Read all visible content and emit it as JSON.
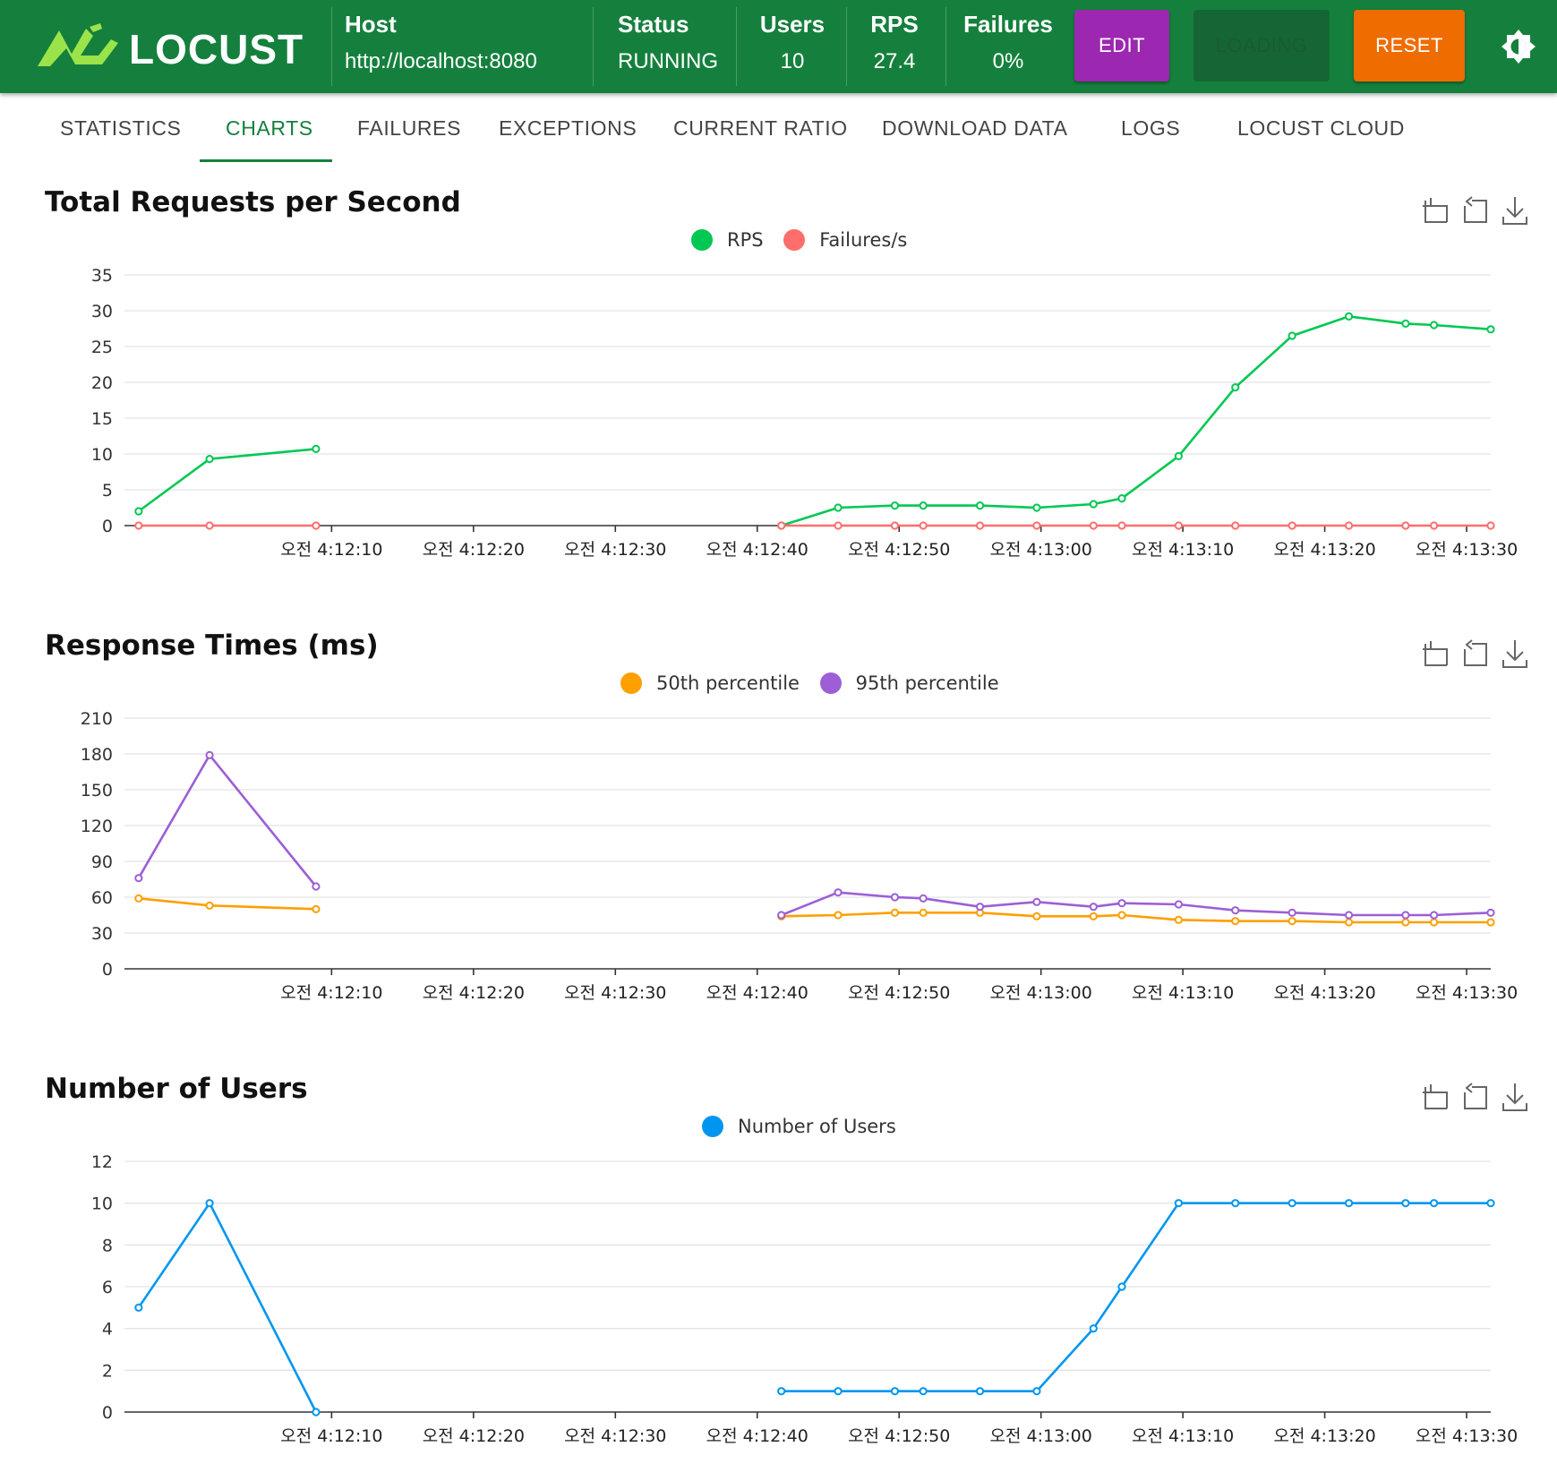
{
  "header": {
    "brand": "LOCUST",
    "host_label": "Host",
    "host_value": "http://localhost:8080",
    "status_label": "Status",
    "status_value": "RUNNING",
    "users_label": "Users",
    "users_value": "10",
    "rps_label": "RPS",
    "rps_value": "27.4",
    "failures_label": "Failures",
    "failures_value": "0%",
    "edit_label": "EDIT",
    "loading_label": "LOADING",
    "reset_label": "RESET"
  },
  "tabs": [
    {
      "label": "STATISTICS"
    },
    {
      "label": "CHARTS"
    },
    {
      "label": "FAILURES"
    },
    {
      "label": "EXCEPTIONS"
    },
    {
      "label": "CURRENT RATIO"
    },
    {
      "label": "DOWNLOAD DATA"
    },
    {
      "label": "LOGS"
    },
    {
      "label": "LOCUST CLOUD"
    }
  ],
  "colors": {
    "brand_green": "#15803d",
    "edit": "#9c27b0",
    "reset": "#ef6c00",
    "rps": "#00c853",
    "failures": "#ff6d6d",
    "p50": "#ff9f00",
    "p95": "#9c5fd6",
    "users": "#0096f0"
  },
  "chart_data": [
    {
      "type": "line",
      "title": "Total Requests per Second",
      "ylim": [
        0,
        35
      ],
      "yticks": [
        "0",
        "5",
        "10",
        "15",
        "20",
        "25",
        "30",
        "35"
      ],
      "xticks": [
        "오전 4:12:10",
        "오전 4:12:20",
        "오전 4:12:30",
        "오전 4:12:40",
        "오전 4:12:50",
        "오전 4:13:00",
        "오전 4:13:10",
        "오전 4:13:20",
        "오전 4:13:30"
      ],
      "series": [
        {
          "name": "RPS",
          "color": "#00c853",
          "segments": [
            [
              [
                1,
                2
              ],
              [
                6,
                9.3
              ],
              [
                13.5,
                10.7
              ]
            ],
            [
              [
                46.3,
                0
              ],
              [
                50.3,
                2.5
              ],
              [
                54.3,
                2.8
              ],
              [
                56.3,
                2.8
              ],
              [
                60.3,
                2.8
              ],
              [
                64.3,
                2.5
              ],
              [
                68.3,
                3.0
              ],
              [
                70.3,
                3.8
              ],
              [
                74.3,
                9.7
              ],
              [
                78.3,
                19.3
              ],
              [
                82.3,
                26.5
              ],
              [
                86.3,
                29.2
              ],
              [
                90.3,
                28.2
              ],
              [
                92.3,
                28.0
              ],
              [
                96.3,
                27.4
              ]
            ]
          ]
        },
        {
          "name": "Failures/s",
          "color": "#ff6d6d",
          "segments": [
            [
              [
                1,
                0
              ],
              [
                6,
                0
              ],
              [
                13.5,
                0
              ]
            ],
            [
              [
                46.3,
                0
              ],
              [
                50.3,
                0
              ],
              [
                54.3,
                0
              ],
              [
                56.3,
                0
              ],
              [
                60.3,
                0
              ],
              [
                64.3,
                0
              ],
              [
                68.3,
                0
              ],
              [
                70.3,
                0
              ],
              [
                74.3,
                0
              ],
              [
                78.3,
                0
              ],
              [
                82.3,
                0
              ],
              [
                86.3,
                0
              ],
              [
                90.3,
                0
              ],
              [
                92.3,
                0
              ],
              [
                96.3,
                0
              ]
            ]
          ]
        }
      ]
    },
    {
      "type": "line",
      "title": "Response Times (ms)",
      "ylim": [
        0,
        210
      ],
      "yticks": [
        "0",
        "30",
        "60",
        "90",
        "120",
        "150",
        "180",
        "210"
      ],
      "xticks": [
        "오전 4:12:10",
        "오전 4:12:20",
        "오전 4:12:30",
        "오전 4:12:40",
        "오전 4:12:50",
        "오전 4:13:00",
        "오전 4:13:10",
        "오전 4:13:20",
        "오전 4:13:30"
      ],
      "series": [
        {
          "name": "50th percentile",
          "color": "#ff9f00",
          "segments": [
            [
              [
                1,
                59
              ],
              [
                6,
                53
              ],
              [
                13.5,
                50
              ]
            ],
            [
              [
                46.3,
                44
              ],
              [
                50.3,
                45
              ],
              [
                54.3,
                47
              ],
              [
                56.3,
                47
              ],
              [
                60.3,
                47
              ],
              [
                64.3,
                44
              ],
              [
                68.3,
                44
              ],
              [
                70.3,
                45
              ],
              [
                74.3,
                41
              ],
              [
                78.3,
                40
              ],
              [
                82.3,
                40
              ],
              [
                86.3,
                39
              ],
              [
                90.3,
                39
              ],
              [
                92.3,
                39
              ],
              [
                96.3,
                39
              ]
            ]
          ]
        },
        {
          "name": "95th percentile",
          "color": "#9c5fd6",
          "segments": [
            [
              [
                1,
                76
              ],
              [
                6,
                179
              ],
              [
                13.5,
                69
              ]
            ],
            [
              [
                46.3,
                45
              ],
              [
                50.3,
                64
              ],
              [
                54.3,
                60
              ],
              [
                56.3,
                59
              ],
              [
                60.3,
                52
              ],
              [
                64.3,
                56
              ],
              [
                68.3,
                52
              ],
              [
                70.3,
                55
              ],
              [
                74.3,
                54
              ],
              [
                78.3,
                49
              ],
              [
                82.3,
                47
              ],
              [
                86.3,
                45
              ],
              [
                90.3,
                45
              ],
              [
                92.3,
                45
              ],
              [
                96.3,
                47
              ]
            ]
          ]
        }
      ]
    },
    {
      "type": "line",
      "title": "Number of Users",
      "ylim": [
        0,
        12
      ],
      "yticks": [
        "0",
        "2",
        "4",
        "6",
        "8",
        "10",
        "12"
      ],
      "xticks": [
        "오전 4:12:10",
        "오전 4:12:20",
        "오전 4:12:30",
        "오전 4:12:40",
        "오전 4:12:50",
        "오전 4:13:00",
        "오전 4:13:10",
        "오전 4:13:20",
        "오전 4:13:30"
      ],
      "series": [
        {
          "name": "Number of Users",
          "color": "#0096f0",
          "segments": [
            [
              [
                1,
                5
              ],
              [
                6,
                10
              ],
              [
                13.5,
                0
              ]
            ],
            [
              [
                46.3,
                1
              ],
              [
                50.3,
                1
              ],
              [
                54.3,
                1
              ],
              [
                56.3,
                1
              ],
              [
                60.3,
                1
              ],
              [
                64.3,
                1
              ],
              [
                68.3,
                4
              ],
              [
                70.3,
                6
              ],
              [
                74.3,
                10
              ],
              [
                78.3,
                10
              ],
              [
                82.3,
                10
              ],
              [
                86.3,
                10
              ],
              [
                90.3,
                10
              ],
              [
                92.3,
                10
              ],
              [
                96.3,
                10
              ]
            ]
          ]
        }
      ]
    }
  ]
}
